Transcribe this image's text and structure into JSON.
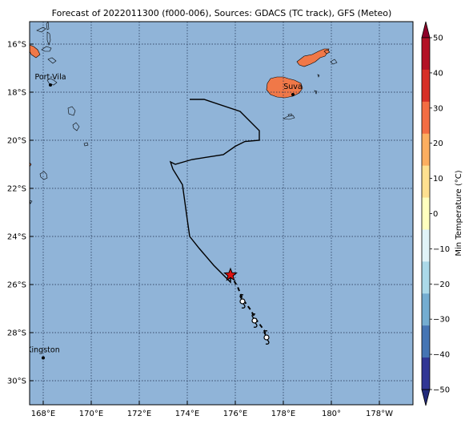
{
  "title": "Forecast of 2022011300 (f000-006), Sources: GDACS (TC track), GFS (Meteo)",
  "map": {
    "lon_ticks": [
      "168°E",
      "170°E",
      "172°E",
      "174°E",
      "176°E",
      "178°E",
      "180°",
      "178°W"
    ],
    "lat_ticks": [
      "16°S",
      "18°S",
      "20°S",
      "22°S",
      "24°S",
      "26°S",
      "28°S",
      "30°S"
    ],
    "lon_values": [
      168,
      170,
      172,
      174,
      176,
      178,
      180,
      182
    ],
    "lat_values": [
      -16,
      -18,
      -20,
      -22,
      -24,
      -26,
      -28,
      -30
    ],
    "lon_range": [
      167.4,
      183.5
    ],
    "lat_range": [
      -31.0,
      -15.2
    ],
    "ocean_color": "#90b4d8",
    "land_color": "#f07848",
    "cities": [
      {
        "name": "Port-Vila",
        "lon": 168.3,
        "lat": -17.7
      },
      {
        "name": "Suva",
        "lon": 178.4,
        "lat": -18.1
      },
      {
        "name": "Kingston",
        "lon": 168.0,
        "lat": -29.05
      }
    ],
    "past_track": [
      [
        174.1,
        -18.3
      ],
      [
        174.7,
        -18.3
      ],
      [
        176.2,
        -18.8
      ],
      [
        177.0,
        -19.6
      ],
      [
        177.0,
        -20.0
      ],
      [
        176.4,
        -20.05
      ],
      [
        176.0,
        -20.25
      ],
      [
        175.5,
        -20.6
      ],
      [
        174.2,
        -20.8
      ],
      [
        173.5,
        -21.0
      ],
      [
        173.3,
        -20.9
      ],
      [
        173.4,
        -21.2
      ],
      [
        173.8,
        -21.85
      ],
      [
        174.0,
        -23.3
      ],
      [
        174.1,
        -24.0
      ],
      [
        174.5,
        -24.5
      ],
      [
        175.1,
        -25.2
      ],
      [
        175.8,
        -25.9
      ],
      [
        175.8,
        -25.6
      ]
    ],
    "forecast_track": [
      [
        175.8,
        -25.6
      ],
      [
        176.1,
        -26.1
      ],
      [
        176.3,
        -26.6
      ],
      [
        176.6,
        -27.0
      ],
      [
        176.9,
        -27.5
      ],
      [
        177.2,
        -27.9
      ],
      [
        177.3,
        -28.2
      ]
    ],
    "storm_symbols": [
      [
        176.3,
        -26.7
      ],
      [
        176.8,
        -27.5
      ],
      [
        177.3,
        -28.2
      ]
    ],
    "current_position": {
      "lon": 175.8,
      "lat": -25.6,
      "color": "#dd1111"
    }
  },
  "colorbar": {
    "label": "Min Temperature (°C)",
    "ticks": [
      "50",
      "40",
      "30",
      "20",
      "10",
      "0",
      "−10",
      "−20",
      "−30",
      "−40",
      "−50"
    ],
    "colors": [
      "#8e0028",
      "#b31226",
      "#d73027",
      "#f36d43",
      "#fcae60",
      "#fee090",
      "#ffffbf",
      "#e0f3f8",
      "#abd9e9",
      "#74add1",
      "#4575b4",
      "#313695",
      "#222a7a"
    ]
  }
}
